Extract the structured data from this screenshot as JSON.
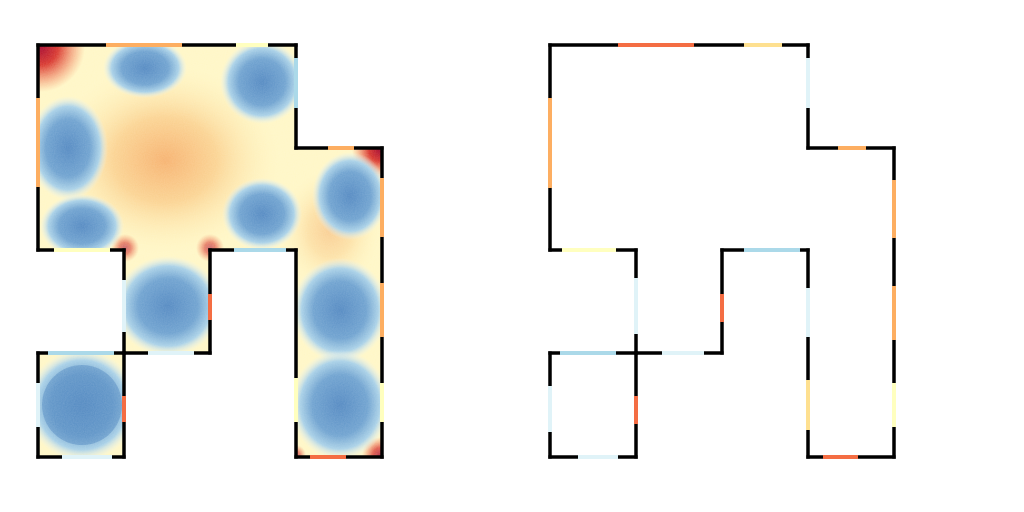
{
  "figure": {
    "panels": [
      "heatmap-floorplan",
      "wall-segment-floorplan"
    ]
  },
  "palette": {
    "wall": "#000000",
    "very_hot": "#a50026",
    "hot": "#f46d43",
    "warm": "#fdae61",
    "mild": "#fee090",
    "neutral": "#ffffbf",
    "cool": "#e0f3f8",
    "cold": "#abd9e9",
    "colder": "#74add1",
    "coldest": "#4575b4"
  },
  "colorscale": [
    "#a50026",
    "#d73027",
    "#f46d43",
    "#fdae61",
    "#fee090",
    "#ffffbf",
    "#e0f3f8",
    "#abd9e9",
    "#74add1",
    "#4575b4"
  ]
}
